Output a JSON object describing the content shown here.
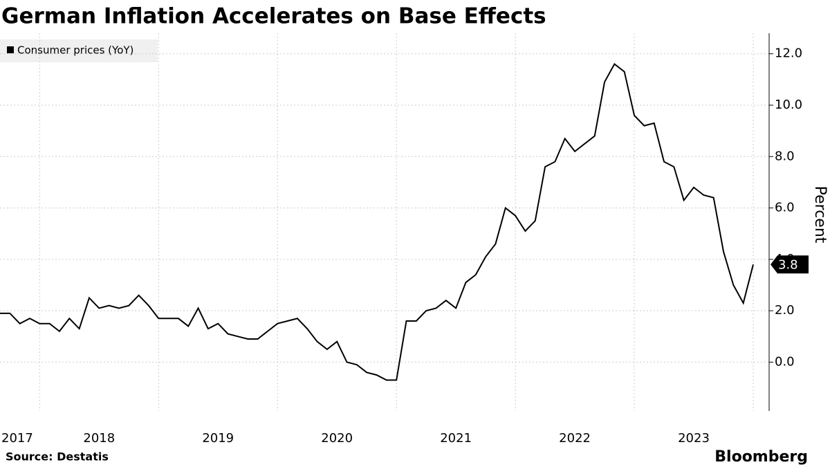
{
  "chart_data": {
    "type": "line",
    "title": "German Inflation Accelerates on Base Effects",
    "source": "Source:  Destatis",
    "brand": "Bloomberg",
    "y_axis_label": "Percent",
    "categories": [
      "2017",
      null,
      null,
      null,
      null,
      null,
      null,
      null,
      null,
      null,
      "2018",
      null,
      null,
      null,
      null,
      null,
      null,
      null,
      null,
      null,
      null,
      null,
      "2019",
      null,
      null,
      null,
      null,
      null,
      null,
      null,
      null,
      null,
      null,
      null,
      "2020",
      null,
      null,
      null,
      null,
      null,
      null,
      null,
      null,
      null,
      null,
      null,
      "2021",
      null,
      null,
      null,
      null,
      null,
      null,
      null,
      null,
      null,
      null,
      null,
      "2022",
      null,
      null,
      null,
      null,
      null,
      null,
      null,
      null,
      null,
      null,
      null,
      "2023",
      null,
      null,
      null,
      null,
      null,
      null
    ],
    "series": [
      {
        "name": "Consumer prices (YoY)",
        "color": "#000000",
        "values": [
          1.9,
          1.9,
          1.5,
          1.7,
          1.5,
          1.5,
          1.2,
          1.7,
          1.3,
          2.5,
          2.1,
          2.2,
          2.1,
          2.2,
          2.6,
          2.2,
          1.7,
          1.7,
          1.7,
          1.4,
          2.1,
          1.3,
          1.5,
          1.1,
          1.0,
          0.9,
          0.9,
          1.2,
          1.5,
          1.6,
          1.7,
          1.3,
          0.8,
          0.5,
          0.8,
          0.0,
          -0.1,
          -0.4,
          -0.5,
          -0.7,
          -0.7,
          1.6,
          1.6,
          2.0,
          2.1,
          2.4,
          2.1,
          3.1,
          3.4,
          4.1,
          4.6,
          6.0,
          5.7,
          5.1,
          5.5,
          7.6,
          7.8,
          8.7,
          8.2,
          8.5,
          8.8,
          10.9,
          11.6,
          11.3,
          9.6,
          9.2,
          9.3,
          7.8,
          7.6,
          6.3,
          6.8,
          6.5,
          6.4,
          4.3,
          3.0,
          2.3,
          3.8
        ]
      }
    ],
    "ylim": [
      -1.9,
      12.8
    ],
    "yticks": [
      {
        "value": 0,
        "label": "0.0"
      },
      {
        "value": 2,
        "label": "2.0"
      },
      {
        "value": 4,
        "label": "4.0"
      },
      {
        "value": 6,
        "label": "6.0"
      },
      {
        "value": 8,
        "label": "8.0"
      },
      {
        "value": 10,
        "label": "10.0"
      },
      {
        "value": 12,
        "label": "12.0"
      }
    ],
    "grid": true
  }
}
